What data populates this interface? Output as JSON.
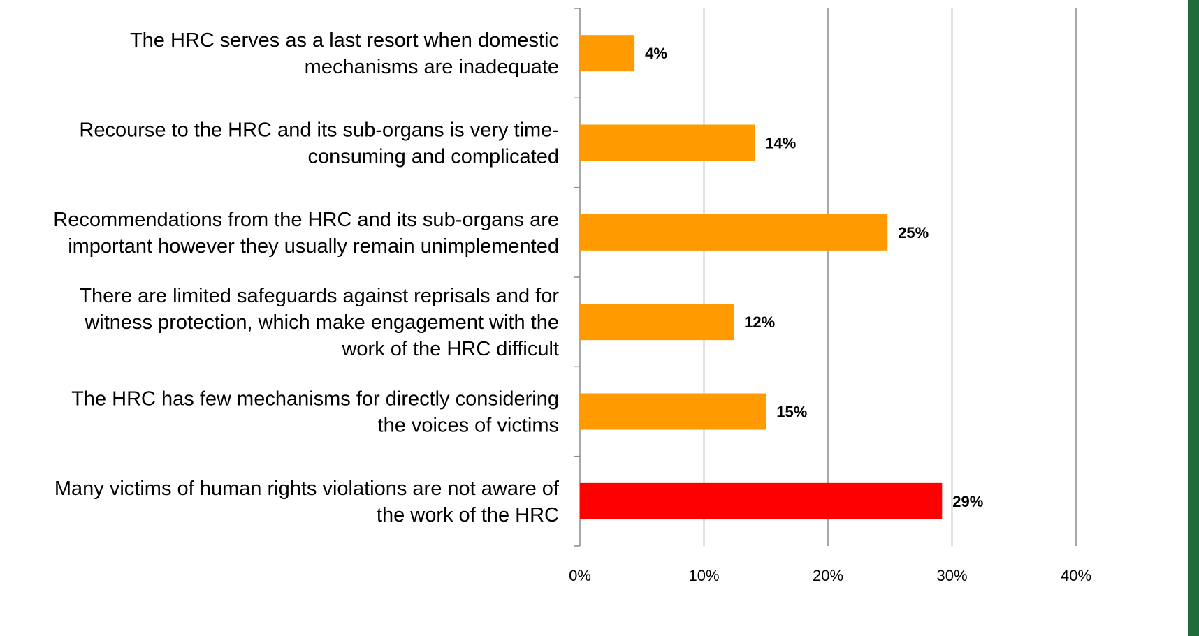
{
  "colors": {
    "bar_default": "#FF9B00",
    "bar_highlight": "#FF0000",
    "grid": "#8C8C8C",
    "side_band": "#1F6B3A"
  },
  "chart_data": {
    "type": "bar",
    "orientation": "horizontal",
    "categories": [
      "The HRC serves as a last resort when domestic mechanisms are inadequate",
      "Recourse to the HRC and its sub-organs is very time-consuming and complicated",
      "Recommendations from the HRC and its sub-organs are important however they usually remain unimplemented",
      "There are limited safeguards against reprisals and for witness protection, which make engagement with the work of the HRC difficult",
      "The HRC has few mechanisms for directly considering the voices of victims",
      "Many victims of human rights violations are not aware of the work of the HRC"
    ],
    "category_lines": [
      [
        "The HRC serves as a last resort when domestic",
        "mechanisms are inadequate"
      ],
      [
        "Recourse to the HRC and its sub-organs is very time-",
        "consuming and complicated"
      ],
      [
        "Recommendations from the HRC and its sub-organs are",
        "important however they usually remain unimplemented"
      ],
      [
        "There are limited safeguards against reprisals and for",
        "witness protection, which make engagement with the",
        "work of the HRC difficult"
      ],
      [
        "The HRC has few mechanisms for directly considering",
        "the voices of victims"
      ],
      [
        "Many victims of human rights violations are not aware of",
        "the work of the HRC"
      ]
    ],
    "values": [
      4.4,
      14.1,
      24.8,
      12.4,
      15.0,
      29.2
    ],
    "data_labels": [
      "4%",
      "14%",
      "25%",
      "12%",
      "15%",
      "29%"
    ],
    "highlight_index": 5,
    "xlim": [
      0,
      40
    ],
    "xticks": [
      0,
      10,
      20,
      30,
      40
    ],
    "xtick_labels": [
      "0%",
      "10%",
      "20%",
      "30%",
      "40%"
    ],
    "grid": "vertical",
    "legend": "none",
    "title": "",
    "xlabel": "",
    "ylabel": ""
  }
}
